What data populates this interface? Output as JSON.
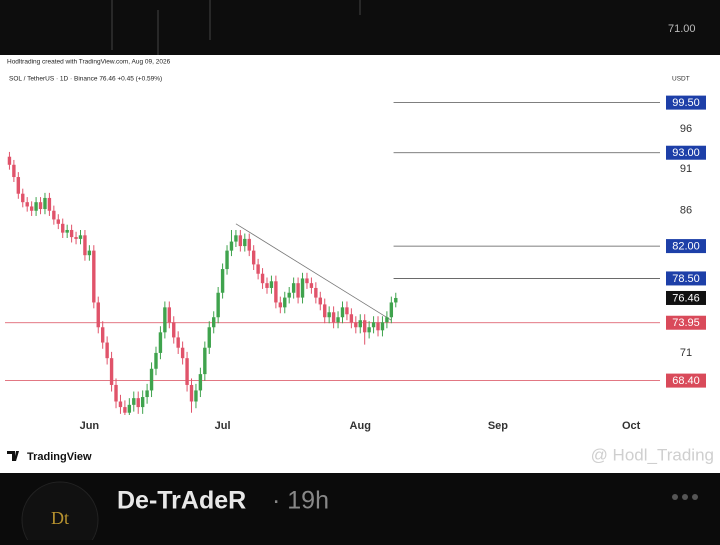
{
  "post": {
    "top_label": "71.00",
    "author": "De-TrAdeR",
    "time": "· 19h"
  },
  "chart_data": {
    "type": "candlestick",
    "credit": "Hodltrading created with TradingView.com, Aug 09, 2026",
    "symbol": "SOL / TetherUS · 1D · Binance 76.46 +0.45 (+0.59%)",
    "currency": "USDT",
    "brand": "TradingView",
    "watermark": "@ Hodl_Trading",
    "log_scale": true,
    "up_color": "#3fa34d",
    "down_color": "#e0536a",
    "xlim": [
      -1,
      146.5
    ],
    "xticks": [
      {
        "value": 18,
        "label": "Jun"
      },
      {
        "value": 48,
        "label": "Jul"
      },
      {
        "value": 79,
        "label": "Aug"
      },
      {
        "value": 110,
        "label": "Sep"
      },
      {
        "value": 140,
        "label": "Oct"
      }
    ],
    "ylim": [
      65.3,
      105.1
    ],
    "yticks": [
      96,
      91,
      86,
      71
    ],
    "resistance_color": "#1d3fa8",
    "support_color": "#d94a5a",
    "resistance_levels": [
      {
        "value": 99.5,
        "label": "99.50"
      },
      {
        "value": 93,
        "label": "93.00"
      },
      {
        "value": 82,
        "label": "82.00"
      },
      {
        "value": 78.5,
        "label": "78.50"
      }
    ],
    "support_levels": [
      {
        "value": 73.95,
        "label": "73.95"
      },
      {
        "value": 68.4,
        "label": "68.40"
      }
    ],
    "last_price": 76.46,
    "trendline": {
      "x": [
        51,
        86
      ],
      "y": [
        84.5,
        74.2
      ]
    },
    "open": [
      92.5,
      91.5,
      90.0,
      88.0,
      87.0,
      86.5,
      86.0,
      87.0,
      86.2,
      87.5,
      86.0,
      85.0,
      84.5,
      83.5,
      83.8,
      83.0,
      82.8,
      83.2,
      81.0,
      81.5,
      76.0,
      73.5,
      72.0,
      70.5,
      68.0,
      66.5,
      66.0,
      65.5,
      66.2,
      66.8,
      66.0,
      66.9,
      67.5,
      69.5,
      71.0,
      73.0,
      75.5,
      74.0,
      72.5,
      71.5,
      70.5,
      68.0,
      66.5,
      67.5,
      69.0,
      71.5,
      73.5,
      74.5,
      77.0,
      79.5,
      81.5,
      82.5,
      83.2,
      82.0,
      82.8,
      81.5,
      80.0,
      79.0,
      78.0,
      77.5,
      78.2,
      76.0,
      75.5,
      76.5,
      77.0,
      78.0,
      76.5,
      78.5,
      78.0,
      77.5,
      76.5,
      75.8,
      74.5,
      75.0,
      74.0,
      74.5,
      75.5,
      74.8,
      74.0,
      73.5,
      74.2,
      73.0,
      73.5,
      74.0,
      73.2,
      74.0,
      74.5,
      76.0
    ],
    "high": [
      93.1,
      92.1,
      90.6,
      88.6,
      87.6,
      87.1,
      87.6,
      87.6,
      88.1,
      88.1,
      86.6,
      85.6,
      85.1,
      84.4,
      84.4,
      83.6,
      83.8,
      83.8,
      82.1,
      82.1,
      76.6,
      74.1,
      72.6,
      71.1,
      68.6,
      67.1,
      66.6,
      66.8,
      67.4,
      67.4,
      67.5,
      68.1,
      70.1,
      71.6,
      73.6,
      76.1,
      76.1,
      74.6,
      73.1,
      72.1,
      71.1,
      68.6,
      68.1,
      69.6,
      72.1,
      74.1,
      75.1,
      77.6,
      80.1,
      82.1,
      83.8,
      83.8,
      83.8,
      83.4,
      83.4,
      82.1,
      80.6,
      79.6,
      78.6,
      78.8,
      78.8,
      76.6,
      77.1,
      77.6,
      78.6,
      78.6,
      79.1,
      79.1,
      78.6,
      78.1,
      77.1,
      76.4,
      75.6,
      75.6,
      75.1,
      76.1,
      76.1,
      75.4,
      74.6,
      74.8,
      74.8,
      74.1,
      74.6,
      74.6,
      74.6,
      75.1,
      76.6,
      77.0
    ],
    "low": [
      90.9,
      89.4,
      87.4,
      86.4,
      85.9,
      85.4,
      85.4,
      85.6,
      85.6,
      85.4,
      84.4,
      83.9,
      82.9,
      82.9,
      82.4,
      82.2,
      82.2,
      80.4,
      80.4,
      75.4,
      72.9,
      71.4,
      69.9,
      67.4,
      65.9,
      65.4,
      65.0,
      65.0,
      65.6,
      65.4,
      65.4,
      66.3,
      66.9,
      68.9,
      70.4,
      72.4,
      73.4,
      71.9,
      70.9,
      69.9,
      67.4,
      65.5,
      65.9,
      66.9,
      68.4,
      70.9,
      72.9,
      73.9,
      76.4,
      78.9,
      80.9,
      81.9,
      81.4,
      81.4,
      80.9,
      79.4,
      78.4,
      77.4,
      76.9,
      76.9,
      75.4,
      74.9,
      74.9,
      75.9,
      76.4,
      75.9,
      75.9,
      77.4,
      76.9,
      75.9,
      75.2,
      73.9,
      73.9,
      73.4,
      73.4,
      73.9,
      74.2,
      73.4,
      72.9,
      72.9,
      71.8,
      72.4,
      72.9,
      72.6,
      72.6,
      73.4,
      73.9,
      75.5
    ],
    "close": [
      91.5,
      90.0,
      88.0,
      87.0,
      86.5,
      86.0,
      87.0,
      86.2,
      87.5,
      86.0,
      85.0,
      84.5,
      83.5,
      83.8,
      83.0,
      82.8,
      83.2,
      81.0,
      81.5,
      76.0,
      73.5,
      72.0,
      70.5,
      68.0,
      66.5,
      66.0,
      65.5,
      66.2,
      66.8,
      66.0,
      66.9,
      67.5,
      69.5,
      71.0,
      73.0,
      75.5,
      74.0,
      72.5,
      71.5,
      70.5,
      68.0,
      66.5,
      67.5,
      69.0,
      71.5,
      73.5,
      74.5,
      77.0,
      79.5,
      81.5,
      82.5,
      83.2,
      82.0,
      82.8,
      81.5,
      80.0,
      79.0,
      78.0,
      77.5,
      78.2,
      76.0,
      75.5,
      76.5,
      77.0,
      78.0,
      76.5,
      78.5,
      78.0,
      77.5,
      76.5,
      75.8,
      74.5,
      75.0,
      74.0,
      74.5,
      75.5,
      74.8,
      74.0,
      73.5,
      74.2,
      73.0,
      73.5,
      74.0,
      73.2,
      74.0,
      74.5,
      76.0,
      76.46
    ]
  }
}
